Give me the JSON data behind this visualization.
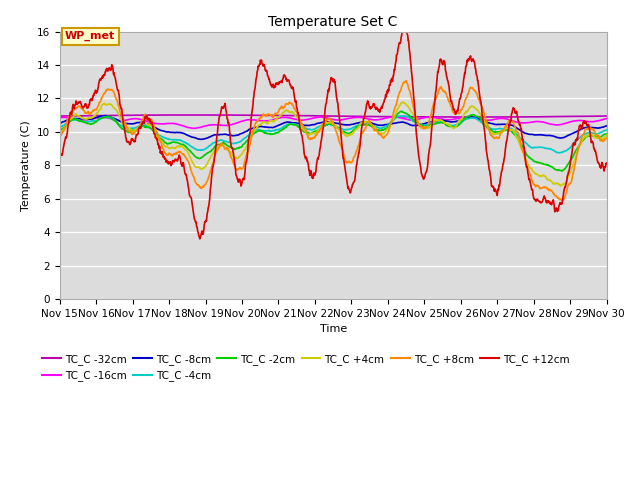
{
  "title": "Temperature Set C",
  "xlabel": "Time",
  "ylabel": "Temperature (C)",
  "ylim": [
    0,
    16
  ],
  "yticks": [
    0,
    2,
    4,
    6,
    8,
    10,
    12,
    14,
    16
  ],
  "plot_bg_color": "#dcdcdc",
  "annotation_text": "WP_met",
  "annotation_bg": "#ffffcc",
  "annotation_border": "#cc9900",
  "series_colors": {
    "TC_C -32cm": "#bb00bb",
    "TC_C -16cm": "#ff00ff",
    "TC_C -8cm": "#0000cc",
    "TC_C -4cm": "#00cccc",
    "TC_C -2cm": "#00cc00",
    "TC_C +4cm": "#cccc00",
    "TC_C +8cm": "#ff8800",
    "TC_C +12cm": "#dd0000"
  },
  "x_tick_labels": [
    "Nov 15",
    "Nov 16",
    "Nov 17",
    "Nov 18",
    "Nov 19",
    "Nov 20",
    "Nov 21",
    "Nov 22",
    "Nov 23",
    "Nov 24",
    "Nov 25",
    "Nov 26",
    "Nov 27",
    "Nov 28",
    "Nov 29",
    "Nov 30"
  ]
}
